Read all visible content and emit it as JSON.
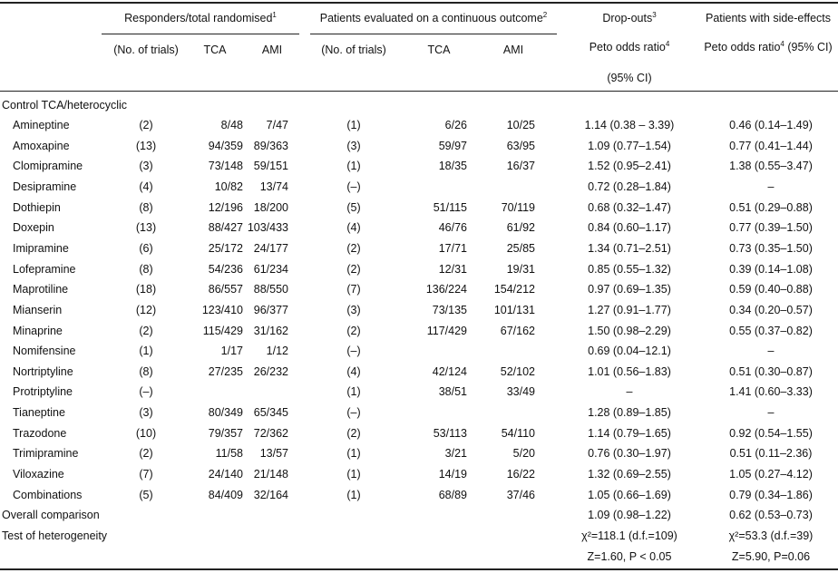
{
  "header": {
    "responders": {
      "text": "Responders/total randomised",
      "note": "1"
    },
    "continuous": {
      "text": "Patients evaluated on a continuous outcome",
      "note": "2"
    },
    "dropouts": {
      "text": "Drop-outs",
      "note": "3",
      "measure": "Peto odds ratio",
      "measure_note": "4",
      "ci": "(95% CI)"
    },
    "side_effects": {
      "text": "Patients with side-effects",
      "measure": "Peto odds ratio",
      "measure_note": "4",
      "ci": "(95% CI)"
    },
    "subcolumns": [
      "(No. of trials)",
      "TCA",
      "AMI",
      "(No. of trials)",
      "TCA",
      "AMI"
    ]
  },
  "section": "Control TCA/heterocyclic",
  "rows": [
    [
      "Amineptine",
      "(2)",
      "8/48",
      "7/47",
      "(1)",
      "6/26",
      "10/25",
      "1.14 (0.38 – 3.39)",
      "0.46 (0.14–1.49)"
    ],
    [
      "Amoxapine",
      "(13)",
      "94/359",
      "89/363",
      "(3)",
      "59/97",
      "63/95",
      "1.09 (0.77–1.54)",
      "0.77 (0.41–1.44)"
    ],
    [
      "Clomipramine",
      "(3)",
      "73/148",
      "59/151",
      "(1)",
      "18/35",
      "16/37",
      "1.52 (0.95–2.41)",
      "1.38 (0.55–3.47)"
    ],
    [
      "Desipramine",
      "(4)",
      "10/82",
      "13/74",
      "(–)",
      null,
      null,
      "0.72 (0.28–1.84)",
      "–"
    ],
    [
      "Dothiepin",
      "(8)",
      "12/196",
      "18/200",
      "(5)",
      "51/115",
      "70/119",
      "0.68 (0.32–1.47)",
      "0.51 (0.29–0.88)"
    ],
    [
      "Doxepin",
      "(13)",
      "88/427",
      "103/433",
      "(4)",
      "46/76",
      "61/92",
      "0.84 (0.60–1.17)",
      "0.77 (0.39–1.50)"
    ],
    [
      "Imipramine",
      "(6)",
      "25/172",
      "24/177",
      "(2)",
      "17/71",
      "25/85",
      "1.34 (0.71–2.51)",
      "0.73 (0.35–1.50)"
    ],
    [
      "Lofepramine",
      "(8)",
      "54/236",
      "61/234",
      "(2)",
      "12/31",
      "19/31",
      "0.85 (0.55–1.32)",
      "0.39 (0.14–1.08)"
    ],
    [
      "Maprotiline",
      "(18)",
      "86/557",
      "88/550",
      "(7)",
      "136/224",
      "154/212",
      "0.97 (0.69–1.35)",
      "0.59 (0.40–0.88)"
    ],
    [
      "Mianserin",
      "(12)",
      "123/410",
      "96/377",
      "(3)",
      "73/135",
      "101/131",
      "1.27 (0.91–1.77)",
      "0.34 (0.20–0.57)"
    ],
    [
      "Minaprine",
      "(2)",
      "115/429",
      "31/162",
      "(2)",
      "117/429",
      "67/162",
      "1.50 (0.98–2.29)",
      "0.55 (0.37–0.82)"
    ],
    [
      "Nomifensine",
      "(1)",
      "1/17",
      "1/12",
      "(–)",
      null,
      null,
      "0.69 (0.04–12.1)",
      "–"
    ],
    [
      "Nortriptyline",
      "(8)",
      "27/235",
      "26/232",
      "(4)",
      "42/124",
      "52/102",
      "1.01 (0.56–1.83)",
      "0.51 (0.30–0.87)"
    ],
    [
      "Protriptyline",
      "(–)",
      null,
      null,
      "(1)",
      "38/51",
      "33/49",
      "–",
      "1.41 (0.60–3.33)"
    ],
    [
      "Tianeptine",
      "(3)",
      "80/349",
      "65/345",
      "(–)",
      null,
      null,
      "1.28 (0.89–1.85)",
      "–"
    ],
    [
      "Trazodone",
      "(10)",
      "79/357",
      "72/362",
      "(2)",
      "53/113",
      "54/110",
      "1.14 (0.79–1.65)",
      "0.92 (0.54–1.55)"
    ],
    [
      "Trimipramine",
      "(2)",
      "11/58",
      "13/57",
      "(1)",
      "3/21",
      "5/20",
      "0.76 (0.30–1.97)",
      "0.51 (0.11–2.36)"
    ],
    [
      "Viloxazine",
      "(7)",
      "24/140",
      "21/148",
      "(1)",
      "14/19",
      "16/22",
      "1.32 (0.69–2.55)",
      "1.05 (0.27–4.12)"
    ],
    [
      "Combinations",
      "(5)",
      "84/409",
      "32/164",
      "(1)",
      "68/89",
      "37/46",
      "1.05 (0.66–1.69)",
      "0.79 (0.34–1.86)"
    ]
  ],
  "overall": {
    "label": "Overall comparison",
    "dropouts": "1.09 (0.98–1.22)",
    "side_effects": "0.62 (0.53–0.73)"
  },
  "heterogeneity": {
    "label": "Test of heterogeneity",
    "dropouts": [
      "χ²=118.1 (d.f.=109)",
      "Z=1.60, P < 0.05"
    ],
    "side_effects": [
      "χ²=53.3 (d.f.=39)",
      "Z=5.90, P=0.06"
    ]
  }
}
